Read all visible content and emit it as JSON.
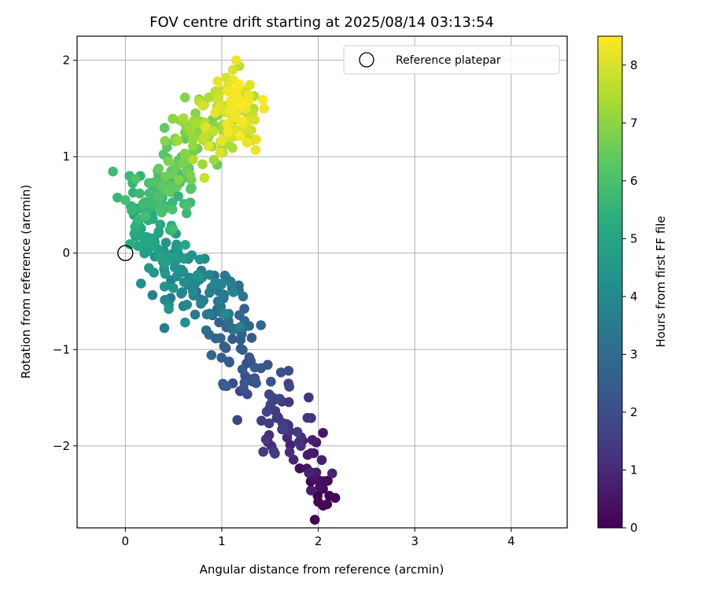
{
  "chart_data": {
    "type": "scatter",
    "title": "FOV centre drift starting at 2025/08/14 03:13:54",
    "xlabel": "Angular distance from reference (arcmin)",
    "ylabel": "Rotation from reference (arcmin)",
    "xlim": [
      -0.5,
      4.58
    ],
    "ylim": [
      -2.85,
      2.25
    ],
    "xticks": [
      0,
      1,
      2,
      3,
      4
    ],
    "xtick_labels": [
      "0",
      "1",
      "2",
      "3",
      "4"
    ],
    "yticks": [
      -2,
      -1,
      0,
      1,
      2
    ],
    "ytick_labels": [
      "−2",
      "−1",
      "0",
      "1",
      "2"
    ],
    "grid": true,
    "legend": {
      "position": "top-right",
      "entries": [
        "Reference platepar"
      ]
    },
    "reference_point": {
      "x": 0,
      "y": 0,
      "label": "Reference platepar"
    },
    "colorbar": {
      "label": "Hours from first FF file",
      "min": 0,
      "max": 8.5,
      "ticks": [
        0,
        1,
        2,
        3,
        4,
        5,
        6,
        7,
        8
      ],
      "colormap": "viridis"
    },
    "marker_color_by": "hours",
    "n_points": 520,
    "path_hours": [
      0,
      0.5,
      1.0,
      1.5,
      2.0,
      2.5,
      3.0,
      3.5,
      4.0,
      4.5,
      5.0,
      5.5,
      6.0,
      6.5,
      7.0,
      7.5,
      8.0,
      8.5
    ],
    "path_x": [
      2.05,
      1.95,
      1.78,
      1.58,
      1.35,
      1.18,
      1.05,
      0.88,
      0.65,
      0.4,
      0.28,
      0.28,
      0.38,
      0.55,
      0.75,
      0.95,
      1.12,
      1.2
    ],
    "path_y": [
      -2.55,
      -2.22,
      -1.92,
      -1.65,
      -1.35,
      -1.0,
      -0.62,
      -0.4,
      -0.3,
      -0.08,
      0.18,
      0.45,
      0.7,
      0.98,
      1.2,
      1.35,
      1.45,
      1.55
    ],
    "spread_x": [
      0.05,
      0.14,
      0.16,
      0.16,
      0.14,
      0.14,
      0.17,
      0.18,
      0.18,
      0.15,
      0.12,
      0.13,
      0.15,
      0.16,
      0.15,
      0.15,
      0.15,
      0.12
    ],
    "spread_y": [
      0.1,
      0.14,
      0.16,
      0.17,
      0.16,
      0.17,
      0.18,
      0.16,
      0.16,
      0.15,
      0.14,
      0.15,
      0.17,
      0.19,
      0.18,
      0.18,
      0.2,
      0.2
    ],
    "outliers": [
      {
        "x": 2.05,
        "y": -2.62,
        "h": 0.05
      },
      {
        "x": 2.0,
        "y": -2.58,
        "h": 0.08
      },
      {
        "x": 1.55,
        "y": -2.08,
        "h": 1.6
      },
      {
        "x": 1.05,
        "y": -1.38,
        "h": 2.7
      },
      {
        "x": 0.0,
        "y": 0.55,
        "h": 5.9
      },
      {
        "x": 1.15,
        "y": 2.0,
        "h": 8.3
      },
      {
        "x": 1.35,
        "y": 1.07,
        "h": 8.3
      },
      {
        "x": 0.82,
        "y": 0.78,
        "h": 7.8
      },
      {
        "x": 0.62,
        "y": -0.72,
        "h": 4.3
      },
      {
        "x": 0.45,
        "y": -0.58,
        "h": 4.5
      }
    ]
  }
}
